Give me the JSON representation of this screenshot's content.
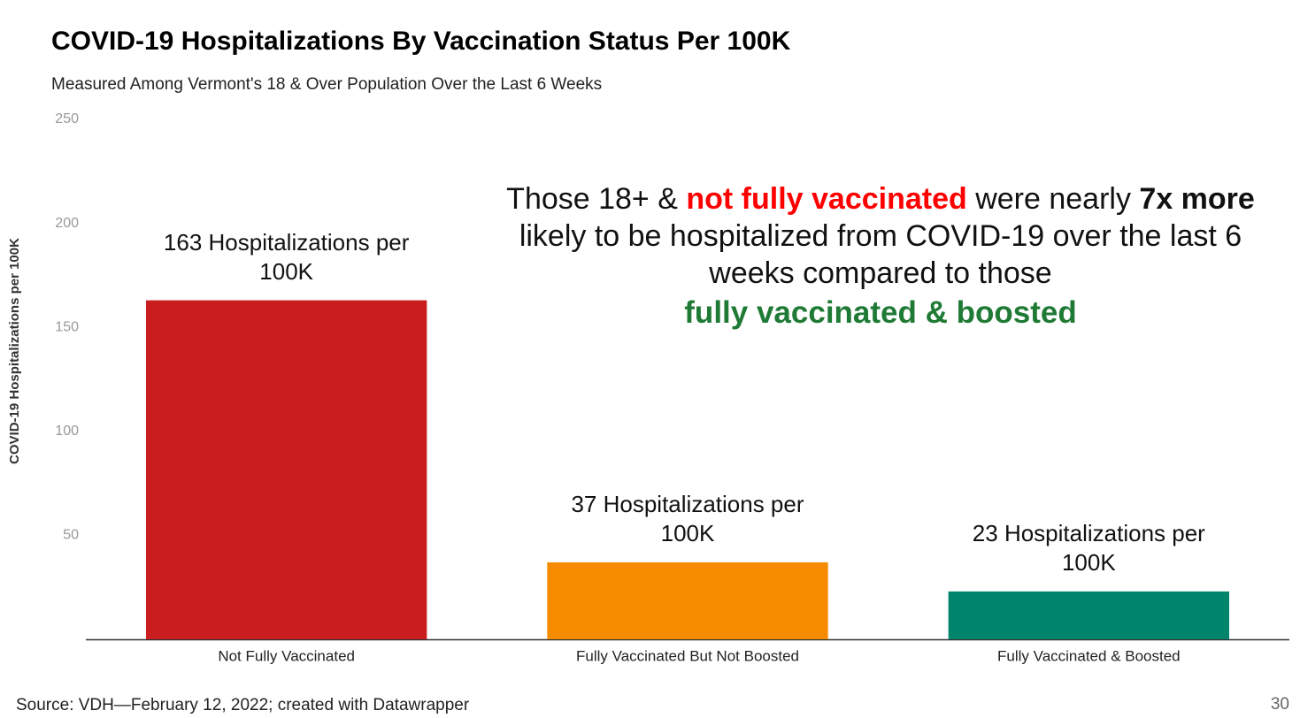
{
  "chart_data": {
    "type": "bar",
    "title": "COVID-19 Hospitalizations By Vaccination Status Per 100K",
    "subtitle": "Measured Among Vermont's 18 & Over Population Over the Last 6 Weeks",
    "y_label": "COVID-19 Hospitalizations per 100K",
    "categories": [
      "Not Fully Vaccinated",
      "Fully Vaccinated But Not Boosted",
      "Fully Vaccinated & Boosted"
    ],
    "values": [
      163,
      37,
      23
    ],
    "value_labels": [
      "163 Hospitalizations per 100K",
      "37 Hospitalizations per 100K",
      "23 Hospitalizations per 100K"
    ],
    "colors": [
      "#c91d1f",
      "#f68b00",
      "#00846b"
    ],
    "ylim": [
      0,
      250
    ],
    "yticks": [
      50,
      100,
      150,
      200,
      250
    ],
    "grid": false,
    "annotation": [
      {
        "text": "Those 18+ & ",
        "color": "#111111",
        "bold": false
      },
      {
        "text": "not fully vaccinated",
        "color": "#ff0000",
        "bold": true
      },
      {
        "text": " were nearly ",
        "color": "#111111",
        "bold": false
      },
      {
        "text": "7x more",
        "color": "#111111",
        "bold": true
      },
      {
        "text": " likely to be hospitalized from COVID-19 over the last 6 weeks compared to those ",
        "color": "#111111",
        "bold": false
      },
      {
        "text": "fully vaccinated & boosted",
        "color": "#1e7a34",
        "bold": true
      }
    ],
    "source": "Source: VDH—February 12, 2022; created with Datawrapper",
    "page_number": "30"
  }
}
